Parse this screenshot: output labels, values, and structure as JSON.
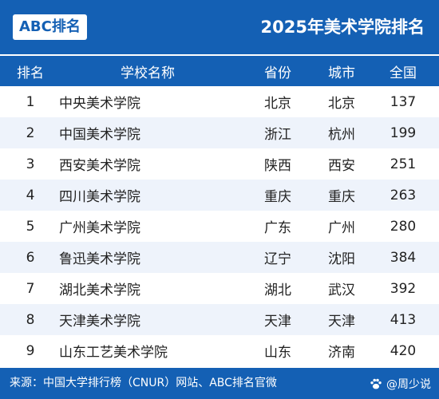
{
  "header": {
    "brand": "ABC排名",
    "title": "2025年美术学院排名"
  },
  "columns": {
    "rank": "排名",
    "name": "学校名称",
    "province": "省份",
    "city": "城市",
    "national": "全国"
  },
  "rows": [
    {
      "rank": "1",
      "name": "中央美术学院",
      "province": "北京",
      "city": "北京",
      "national": "137"
    },
    {
      "rank": "2",
      "name": "中国美术学院",
      "province": "浙江",
      "city": "杭州",
      "national": "199"
    },
    {
      "rank": "3",
      "name": "西安美术学院",
      "province": "陕西",
      "city": "西安",
      "national": "251"
    },
    {
      "rank": "4",
      "name": "四川美术学院",
      "province": "重庆",
      "city": "重庆",
      "national": "263"
    },
    {
      "rank": "5",
      "name": "广州美术学院",
      "province": "广东",
      "city": "广州",
      "national": "280"
    },
    {
      "rank": "6",
      "name": "鲁迅美术学院",
      "province": "辽宁",
      "city": "沈阳",
      "national": "384"
    },
    {
      "rank": "7",
      "name": "湖北美术学院",
      "province": "湖北",
      "city": "武汉",
      "national": "392"
    },
    {
      "rank": "8",
      "name": "天津美术学院",
      "province": "天津",
      "city": "天津",
      "national": "413"
    },
    {
      "rank": "9",
      "name": "山东工艺美术学院",
      "province": "山东",
      "city": "济南",
      "national": "420"
    }
  ],
  "footer": {
    "source": "来源：中国大学排行榜（CNUR）网站、ABC排名官微",
    "watermark": "@周少说",
    "watermark_icon": "paw-icon"
  },
  "colors": {
    "primary": "#1460b4",
    "row_alt": "#eef3fb",
    "text": "#222222"
  }
}
